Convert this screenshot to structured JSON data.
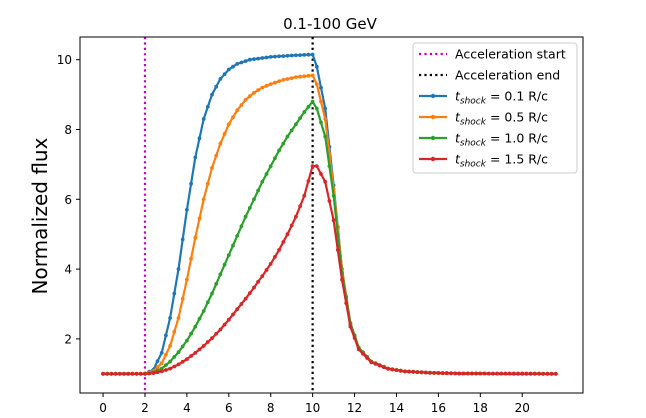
{
  "chart_data": {
    "type": "line",
    "title": "0.1-100 GeV",
    "xlabel": "",
    "ylabel": "Normalized flux",
    "xlim": [
      -1.1,
      22.9
    ],
    "ylim": [
      0.45,
      10.65
    ],
    "xticks": [
      0,
      2,
      4,
      6,
      8,
      10,
      12,
      14,
      16,
      18,
      20
    ],
    "xtick_labels": [
      "0",
      "2",
      "4",
      "6",
      "8",
      "10",
      "12",
      "14",
      "16",
      "18",
      "20"
    ],
    "yticks": [
      2,
      4,
      6,
      8,
      10
    ],
    "ytick_labels": [
      "2",
      "4",
      "6",
      "8",
      "10"
    ],
    "grid": false,
    "legend_position": "top-right",
    "vlines": [
      {
        "name": "Acceleration start",
        "x": 2,
        "color": "#c000c0"
      },
      {
        "name": "Acceleration end",
        "x": 10,
        "color": "#000000"
      }
    ],
    "baseline": 1.0,
    "x_sampling": {
      "start": 0,
      "end": 21.6,
      "step": 0.2
    },
    "series": [
      {
        "name_prefix": "t",
        "name_subscript": "shock",
        "name_suffix": " = 0.1 R/c",
        "color": "#1f77b4",
        "points": [
          [
            0,
            1.0
          ],
          [
            2.0,
            1.0
          ],
          [
            2.4,
            1.12
          ],
          [
            2.8,
            1.6
          ],
          [
            3.2,
            2.6
          ],
          [
            3.6,
            4.0
          ],
          [
            4.0,
            5.7
          ],
          [
            4.4,
            7.2
          ],
          [
            4.8,
            8.3
          ],
          [
            5.2,
            9.0
          ],
          [
            5.6,
            9.45
          ],
          [
            6.0,
            9.72
          ],
          [
            6.4,
            9.88
          ],
          [
            7.0,
            10.0
          ],
          [
            8.0,
            10.08
          ],
          [
            9.0,
            10.12
          ],
          [
            10.0,
            10.15
          ],
          [
            10.2,
            9.8
          ],
          [
            10.6,
            8.6
          ],
          [
            11.0,
            6.4
          ],
          [
            11.4,
            4.0
          ],
          [
            11.8,
            2.4
          ],
          [
            12.2,
            1.75
          ],
          [
            12.8,
            1.35
          ],
          [
            13.6,
            1.15
          ],
          [
            14.4,
            1.07
          ],
          [
            15.6,
            1.03
          ],
          [
            17.0,
            1.01
          ],
          [
            21.6,
            1.0
          ]
        ]
      },
      {
        "name_prefix": "t",
        "name_subscript": "shock",
        "name_suffix": " = 0.5 R/c",
        "color": "#ff7f0e",
        "points": [
          [
            0,
            1.0
          ],
          [
            2.0,
            1.0
          ],
          [
            2.4,
            1.08
          ],
          [
            2.8,
            1.3
          ],
          [
            3.2,
            1.8
          ],
          [
            3.6,
            2.6
          ],
          [
            4.0,
            3.7
          ],
          [
            4.4,
            4.9
          ],
          [
            4.8,
            6.0
          ],
          [
            5.2,
            6.9
          ],
          [
            5.6,
            7.6
          ],
          [
            6.0,
            8.15
          ],
          [
            6.4,
            8.55
          ],
          [
            6.8,
            8.85
          ],
          [
            7.2,
            9.05
          ],
          [
            7.6,
            9.2
          ],
          [
            8.0,
            9.3
          ],
          [
            8.6,
            9.42
          ],
          [
            9.2,
            9.5
          ],
          [
            10.0,
            9.55
          ],
          [
            10.2,
            9.3
          ],
          [
            10.6,
            8.3
          ],
          [
            11.0,
            6.3
          ],
          [
            11.4,
            4.0
          ],
          [
            11.8,
            2.45
          ],
          [
            12.2,
            1.75
          ],
          [
            12.8,
            1.35
          ],
          [
            13.6,
            1.15
          ],
          [
            14.4,
            1.07
          ],
          [
            15.6,
            1.03
          ],
          [
            17.0,
            1.01
          ],
          [
            21.6,
            1.0
          ]
        ]
      },
      {
        "name_prefix": "t",
        "name_subscript": "shock",
        "name_suffix": " = 1.0 R/c",
        "color": "#2ca02c",
        "points": [
          [
            0,
            1.0
          ],
          [
            2.0,
            1.0
          ],
          [
            2.4,
            1.04
          ],
          [
            2.8,
            1.15
          ],
          [
            3.2,
            1.35
          ],
          [
            3.6,
            1.62
          ],
          [
            4.0,
            1.95
          ],
          [
            4.4,
            2.35
          ],
          [
            4.8,
            2.8
          ],
          [
            5.2,
            3.3
          ],
          [
            5.6,
            3.85
          ],
          [
            6.0,
            4.4
          ],
          [
            6.4,
            4.95
          ],
          [
            6.8,
            5.5
          ],
          [
            7.2,
            6.0
          ],
          [
            7.6,
            6.5
          ],
          [
            8.0,
            6.95
          ],
          [
            8.4,
            7.4
          ],
          [
            8.8,
            7.8
          ],
          [
            9.2,
            8.15
          ],
          [
            9.6,
            8.5
          ],
          [
            10.0,
            8.8
          ],
          [
            10.2,
            8.6
          ],
          [
            10.6,
            7.8
          ],
          [
            11.0,
            6.1
          ],
          [
            11.4,
            3.9
          ],
          [
            11.8,
            2.45
          ],
          [
            12.2,
            1.75
          ],
          [
            12.8,
            1.35
          ],
          [
            13.6,
            1.15
          ],
          [
            14.4,
            1.07
          ],
          [
            15.6,
            1.03
          ],
          [
            17.0,
            1.01
          ],
          [
            21.6,
            1.0
          ]
        ]
      },
      {
        "name_prefix": "t",
        "name_subscript": "shock",
        "name_suffix": " = 1.5 R/c",
        "color": "#d62728",
        "points": [
          [
            0,
            1.0
          ],
          [
            2.0,
            1.0
          ],
          [
            2.4,
            1.02
          ],
          [
            2.8,
            1.07
          ],
          [
            3.2,
            1.15
          ],
          [
            3.6,
            1.27
          ],
          [
            4.0,
            1.42
          ],
          [
            4.4,
            1.6
          ],
          [
            4.8,
            1.8
          ],
          [
            5.2,
            2.02
          ],
          [
            5.6,
            2.27
          ],
          [
            6.0,
            2.55
          ],
          [
            6.4,
            2.85
          ],
          [
            6.8,
            3.15
          ],
          [
            7.2,
            3.47
          ],
          [
            7.6,
            3.8
          ],
          [
            8.0,
            4.15
          ],
          [
            8.4,
            4.55
          ],
          [
            8.8,
            5.0
          ],
          [
            9.2,
            5.5
          ],
          [
            9.6,
            6.1
          ],
          [
            10.0,
            6.95
          ],
          [
            10.2,
            6.95
          ],
          [
            10.6,
            6.5
          ],
          [
            11.0,
            5.4
          ],
          [
            11.4,
            3.7
          ],
          [
            11.8,
            2.35
          ],
          [
            12.2,
            1.7
          ],
          [
            12.8,
            1.33
          ],
          [
            13.6,
            1.14
          ],
          [
            14.4,
            1.07
          ],
          [
            15.6,
            1.03
          ],
          [
            17.0,
            1.01
          ],
          [
            21.6,
            1.0
          ]
        ]
      }
    ]
  }
}
